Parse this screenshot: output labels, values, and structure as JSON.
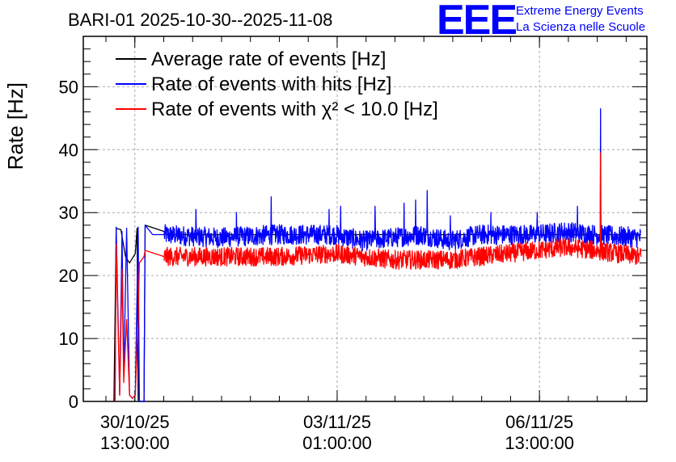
{
  "header": {
    "title": "BARI-01 2025-10-30--2025-11-08",
    "logo_text": "EEE",
    "org_line1": "Extreme Energy Events",
    "org_line2": "La Scienza nelle Scuole",
    "brand_color": "#0000ff"
  },
  "chart_data": {
    "type": "line",
    "title": "BARI-01 2025-10-30--2025-11-08",
    "xlabel": "",
    "ylabel": "Rate [Hz]",
    "ylim": [
      0,
      58
    ],
    "yticks": [
      0,
      10,
      20,
      30,
      40,
      50
    ],
    "x_unit": "days since 2025-10-30 00:00",
    "xlim": [
      -0.35,
      9.4
    ],
    "xticks": [
      {
        "x": 0.5417,
        "date": "30/10/25",
        "time": "13:00:00"
      },
      {
        "x": 4.0417,
        "date": "03/11/25",
        "time": "01:00:00"
      },
      {
        "x": 7.5417,
        "date": "06/11/25",
        "time": "13:00:00"
      }
    ],
    "grid": true,
    "legend_position": "top-left",
    "series": [
      {
        "name": "Average rate of events [Hz]",
        "color": "#000000",
        "mode": "average",
        "points": [
          [
            0.18,
            0
          ],
          [
            0.22,
            27.5
          ],
          [
            0.3,
            27.3
          ],
          [
            0.38,
            23
          ],
          [
            0.45,
            22
          ],
          [
            0.55,
            23.5
          ],
          [
            0.58,
            27.5
          ],
          [
            0.6,
            0.3
          ],
          [
            0.62,
            0
          ],
          [
            0.7,
            0
          ],
          [
            0.72,
            28
          ],
          [
            1.05,
            27
          ],
          [
            1.1,
            26.5
          ],
          [
            9.3,
            26.5
          ]
        ]
      },
      {
        "name": "Rate of events with hits [Hz]",
        "color": "#0000ff",
        "mode": "noisy",
        "base": [
          [
            0.2,
            0
          ],
          [
            0.22,
            27.7
          ],
          [
            0.28,
            1
          ],
          [
            0.32,
            27
          ],
          [
            0.35,
            4
          ],
          [
            0.4,
            27.5
          ],
          [
            0.45,
            1
          ],
          [
            0.5,
            0.5
          ],
          [
            0.55,
            1
          ],
          [
            0.6,
            27.7
          ],
          [
            0.62,
            0
          ],
          [
            0.7,
            0
          ],
          [
            0.72,
            28
          ],
          [
            0.85,
            26.5
          ],
          [
            1.05,
            26.5
          ],
          [
            2,
            26
          ],
          [
            3,
            26.5
          ],
          [
            4,
            26.5
          ],
          [
            4.5,
            25.5
          ],
          [
            5,
            26
          ],
          [
            5.5,
            26.5
          ],
          [
            6,
            25.5
          ],
          [
            6.5,
            26.5
          ],
          [
            7,
            26.5
          ],
          [
            7.5,
            26.5
          ],
          [
            8,
            27
          ],
          [
            8.5,
            26.5
          ],
          [
            9.3,
            26
          ]
        ],
        "amplitude": 1.6,
        "spikes": [
          [
            1.6,
            30.5
          ],
          [
            2.3,
            30
          ],
          [
            2.9,
            32.5
          ],
          [
            3.9,
            30.5
          ],
          [
            4.1,
            31
          ],
          [
            4.7,
            31
          ],
          [
            5.2,
            31.5
          ],
          [
            5.4,
            32
          ],
          [
            5.6,
            33.5
          ],
          [
            6.0,
            29.5
          ],
          [
            6.7,
            30
          ],
          [
            7.5,
            30
          ],
          [
            8.2,
            31
          ],
          [
            8.6,
            46.5
          ]
        ]
      },
      {
        "name": "Rate of events with χ² < 10.0 [Hz]",
        "color": "#ff0000",
        "mode": "noisy",
        "base": [
          [
            0.2,
            0
          ],
          [
            0.22,
            25
          ],
          [
            0.28,
            1
          ],
          [
            0.32,
            21
          ],
          [
            0.35,
            3
          ],
          [
            0.4,
            13
          ],
          [
            0.45,
            1
          ],
          [
            0.5,
            0.5
          ],
          [
            0.55,
            1
          ],
          [
            0.6,
            13
          ],
          [
            0.62,
            22
          ],
          [
            0.7,
            23
          ],
          [
            0.72,
            24
          ],
          [
            1.05,
            23
          ],
          [
            2,
            23
          ],
          [
            3,
            23
          ],
          [
            4,
            23.5
          ],
          [
            4.5,
            23
          ],
          [
            5,
            22.5
          ],
          [
            5.5,
            22.5
          ],
          [
            6,
            22.5
          ],
          [
            6.5,
            23
          ],
          [
            7,
            23.5
          ],
          [
            7.5,
            24
          ],
          [
            8,
            24.5
          ],
          [
            8.5,
            24
          ],
          [
            9.3,
            23
          ]
        ],
        "amplitude": 1.5,
        "spikes": [
          [
            8.6,
            39.5
          ]
        ]
      }
    ]
  }
}
